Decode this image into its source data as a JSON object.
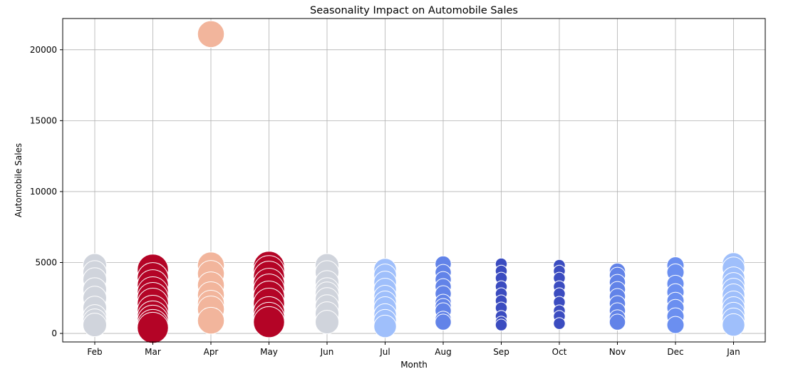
{
  "chart_data": {
    "type": "scatter",
    "title": "Seasonality Impact on Automobile Sales",
    "xlabel": "Month",
    "ylabel": "Automobile Sales",
    "categories": [
      "Feb",
      "Mar",
      "Apr",
      "May",
      "Jun",
      "Jul",
      "Aug",
      "Sep",
      "Oct",
      "Nov",
      "Dec",
      "Jan"
    ],
    "ylim": [
      -600,
      22200
    ],
    "yticks": [
      0,
      5000,
      10000,
      15000,
      20000
    ],
    "ytick_labels": [
      "0",
      "5000",
      "10000",
      "15000",
      "20000"
    ],
    "grid": true,
    "marker_edge_color": "#ffffff",
    "month_colors": {
      "Feb": "#d0d4dc",
      "Mar": "#b40426",
      "Apr": "#f2b59c",
      "May": "#b40426",
      "Jun": "#d0d4dc",
      "Jul": "#9fbffb",
      "Aug": "#6283e8",
      "Sep": "#3b4cc0",
      "Oct": "#3b4cc0",
      "Nov": "#6283e8",
      "Dec": "#6b8ff0",
      "Jan": "#9fbffb"
    },
    "month_seasonality_weight": {
      "Feb": 0.9,
      "Mar": 1.25,
      "Apr": 1.05,
      "May": 1.25,
      "Jun": 0.9,
      "Jul": 0.85,
      "Aug": 0.55,
      "Sep": 0.35,
      "Oct": 0.35,
      "Nov": 0.55,
      "Dec": 0.6,
      "Jan": 0.85
    },
    "points": [
      {
        "month": "Feb",
        "y": 4800
      },
      {
        "month": "Feb",
        "y": 4300
      },
      {
        "month": "Feb",
        "y": 3800
      },
      {
        "month": "Feb",
        "y": 3100
      },
      {
        "month": "Feb",
        "y": 2500
      },
      {
        "month": "Feb",
        "y": 1800
      },
      {
        "month": "Feb",
        "y": 1200
      },
      {
        "month": "Feb",
        "y": 900
      },
      {
        "month": "Feb",
        "y": 600
      },
      {
        "month": "Mar",
        "y": 4500
      },
      {
        "month": "Mar",
        "y": 3900
      },
      {
        "month": "Mar",
        "y": 3400
      },
      {
        "month": "Mar",
        "y": 2900
      },
      {
        "month": "Mar",
        "y": 2500
      },
      {
        "month": "Mar",
        "y": 2100
      },
      {
        "month": "Mar",
        "y": 1600
      },
      {
        "month": "Mar",
        "y": 1200
      },
      {
        "month": "Mar",
        "y": 900
      },
      {
        "month": "Mar",
        "y": 600
      },
      {
        "month": "Mar",
        "y": 400
      },
      {
        "month": "Apr",
        "y": 21100
      },
      {
        "month": "Apr",
        "y": 4800
      },
      {
        "month": "Apr",
        "y": 4200
      },
      {
        "month": "Apr",
        "y": 3400
      },
      {
        "month": "Apr",
        "y": 2700
      },
      {
        "month": "Apr",
        "y": 2100
      },
      {
        "month": "Apr",
        "y": 1700
      },
      {
        "month": "Apr",
        "y": 900
      },
      {
        "month": "May",
        "y": 4700
      },
      {
        "month": "May",
        "y": 4400
      },
      {
        "month": "May",
        "y": 4000
      },
      {
        "month": "May",
        "y": 3500
      },
      {
        "month": "May",
        "y": 3100
      },
      {
        "month": "May",
        "y": 2600
      },
      {
        "month": "May",
        "y": 2100
      },
      {
        "month": "May",
        "y": 1500
      },
      {
        "month": "May",
        "y": 1100
      },
      {
        "month": "May",
        "y": 800
      },
      {
        "month": "Jun",
        "y": 4800
      },
      {
        "month": "Jun",
        "y": 4300
      },
      {
        "month": "Jun",
        "y": 3600
      },
      {
        "month": "Jun",
        "y": 3100
      },
      {
        "month": "Jun",
        "y": 2800
      },
      {
        "month": "Jun",
        "y": 2400
      },
      {
        "month": "Jun",
        "y": 1900
      },
      {
        "month": "Jun",
        "y": 1400
      },
      {
        "month": "Jun",
        "y": 800
      },
      {
        "month": "Jul",
        "y": 4500
      },
      {
        "month": "Jul",
        "y": 4100
      },
      {
        "month": "Jul",
        "y": 3600
      },
      {
        "month": "Jul",
        "y": 3100
      },
      {
        "month": "Jul",
        "y": 2600
      },
      {
        "month": "Jul",
        "y": 2200
      },
      {
        "month": "Jul",
        "y": 1800
      },
      {
        "month": "Jul",
        "y": 1300
      },
      {
        "month": "Jul",
        "y": 900
      },
      {
        "month": "Jul",
        "y": 500
      },
      {
        "month": "Aug",
        "y": 4900
      },
      {
        "month": "Aug",
        "y": 4300
      },
      {
        "month": "Aug",
        "y": 3800
      },
      {
        "month": "Aug",
        "y": 3300
      },
      {
        "month": "Aug",
        "y": 2800
      },
      {
        "month": "Aug",
        "y": 2200
      },
      {
        "month": "Aug",
        "y": 1900
      },
      {
        "month": "Aug",
        "y": 1600
      },
      {
        "month": "Aug",
        "y": 1000
      },
      {
        "month": "Aug",
        "y": 800
      },
      {
        "month": "Sep",
        "y": 4900
      },
      {
        "month": "Sep",
        "y": 4400
      },
      {
        "month": "Sep",
        "y": 3900
      },
      {
        "month": "Sep",
        "y": 3300
      },
      {
        "month": "Sep",
        "y": 2800
      },
      {
        "month": "Sep",
        "y": 2300
      },
      {
        "month": "Sep",
        "y": 1800
      },
      {
        "month": "Sep",
        "y": 1200
      },
      {
        "month": "Sep",
        "y": 800
      },
      {
        "month": "Sep",
        "y": 600
      },
      {
        "month": "Oct",
        "y": 4800
      },
      {
        "month": "Oct",
        "y": 4400
      },
      {
        "month": "Oct",
        "y": 3900
      },
      {
        "month": "Oct",
        "y": 3300
      },
      {
        "month": "Oct",
        "y": 2800
      },
      {
        "month": "Oct",
        "y": 2200
      },
      {
        "month": "Oct",
        "y": 1600
      },
      {
        "month": "Oct",
        "y": 1200
      },
      {
        "month": "Oct",
        "y": 700
      },
      {
        "month": "Nov",
        "y": 4400
      },
      {
        "month": "Nov",
        "y": 4100
      },
      {
        "month": "Nov",
        "y": 3600
      },
      {
        "month": "Nov",
        "y": 3100
      },
      {
        "month": "Nov",
        "y": 2600
      },
      {
        "month": "Nov",
        "y": 2100
      },
      {
        "month": "Nov",
        "y": 1600
      },
      {
        "month": "Nov",
        "y": 1100
      },
      {
        "month": "Nov",
        "y": 800
      },
      {
        "month": "Dec",
        "y": 4800
      },
      {
        "month": "Dec",
        "y": 4300
      },
      {
        "month": "Dec",
        "y": 3500
      },
      {
        "month": "Dec",
        "y": 2900
      },
      {
        "month": "Dec",
        "y": 2300
      },
      {
        "month": "Dec",
        "y": 1800
      },
      {
        "month": "Dec",
        "y": 1200
      },
      {
        "month": "Dec",
        "y": 600
      },
      {
        "month": "Jan",
        "y": 4900
      },
      {
        "month": "Jan",
        "y": 4600
      },
      {
        "month": "Jan",
        "y": 3900
      },
      {
        "month": "Jan",
        "y": 3500
      },
      {
        "month": "Jan",
        "y": 3100
      },
      {
        "month": "Jan",
        "y": 2700
      },
      {
        "month": "Jan",
        "y": 2200
      },
      {
        "month": "Jan",
        "y": 1800
      },
      {
        "month": "Jan",
        "y": 1400
      },
      {
        "month": "Jan",
        "y": 1000
      },
      {
        "month": "Jan",
        "y": 600
      }
    ]
  }
}
